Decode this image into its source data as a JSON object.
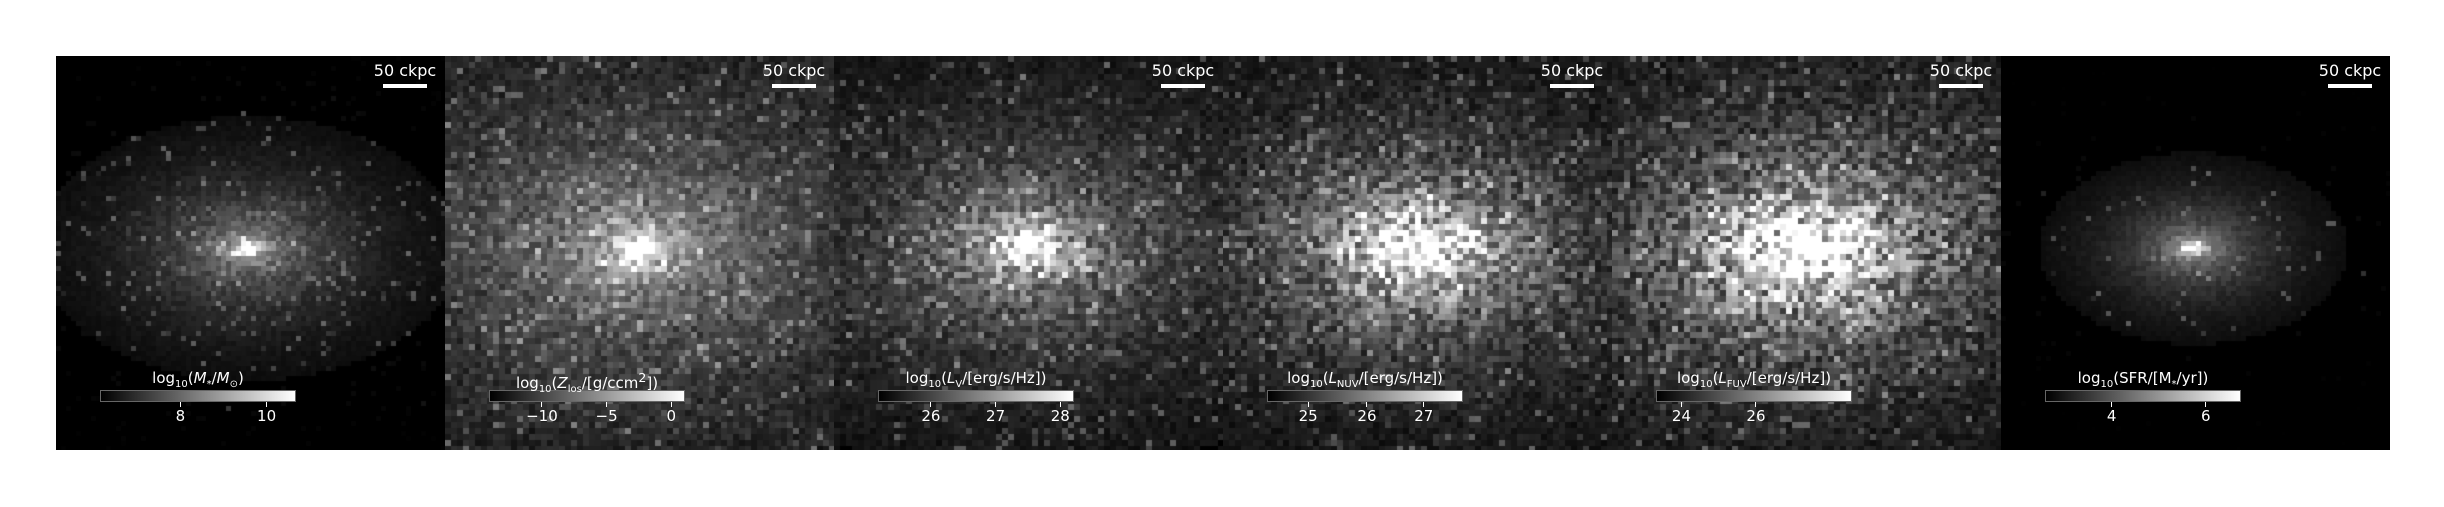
{
  "panels": [
    {
      "id": "stellar-mass",
      "scalebar": "50 ckpc",
      "cbar_label_html": "log<sub>10</sub>(<i>M</i><sub>*</sub>/<i>M</i><sub>⊙</sub>)",
      "ticks": [
        {
          "label": "8",
          "frac": 0.41
        },
        {
          "label": "10",
          "frac": 0.85
        }
      ]
    },
    {
      "id": "metallicity",
      "scalebar": "50 ckpc",
      "cbar_label_html": "log<sub>10</sub>(<i>Z</i><sub>los</sub>/[g/ccm<sup>2</sup>])",
      "ticks": [
        {
          "label": "−10",
          "frac": 0.27
        },
        {
          "label": "−5",
          "frac": 0.6
        },
        {
          "label": "0",
          "frac": 0.93
        }
      ]
    },
    {
      "id": "v-band-luminosity",
      "scalebar": "50 ckpc",
      "cbar_label_html": "log<sub>10</sub>(<i>L</i><sub>V</sub>/[erg/s/Hz])",
      "ticks": [
        {
          "label": "26",
          "frac": 0.27
        },
        {
          "label": "27",
          "frac": 0.6
        },
        {
          "label": "28",
          "frac": 0.93
        }
      ]
    },
    {
      "id": "nuv-luminosity",
      "scalebar": "50 ckpc",
      "cbar_label_html": "log<sub>10</sub>(<i>L</i><sub>NUV</sub>/[erg/s/Hz])",
      "ticks": [
        {
          "label": "25",
          "frac": 0.21
        },
        {
          "label": "26",
          "frac": 0.51
        },
        {
          "label": "27",
          "frac": 0.8
        }
      ]
    },
    {
      "id": "fuv-luminosity",
      "scalebar": "50 ckpc",
      "cbar_label_html": "log<sub>10</sub>(<i>L</i><sub>FUV</sub>/[erg/s/Hz])",
      "ticks": [
        {
          "label": "24",
          "frac": 0.13
        },
        {
          "label": "26",
          "frac": 0.51
        }
      ]
    },
    {
      "id": "star-formation-rate",
      "scalebar": "50 ckpc",
      "cbar_label_html": "log<sub>10</sub>(SFR/[M<sub>*</sub>/yr])",
      "ticks": [
        {
          "label": "4",
          "frac": 0.34
        },
        {
          "label": "6",
          "frac": 0.82
        }
      ]
    }
  ]
}
